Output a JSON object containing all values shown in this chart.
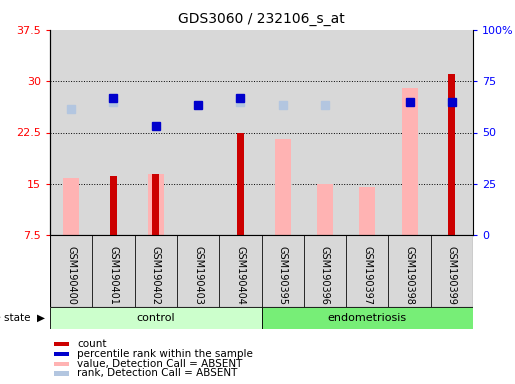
{
  "title": "GDS3060 / 232106_s_at",
  "samples": [
    "GSM190400",
    "GSM190401",
    "GSM190402",
    "GSM190403",
    "GSM190404",
    "GSM190395",
    "GSM190396",
    "GSM190397",
    "GSM190398",
    "GSM190399"
  ],
  "groups": [
    "control",
    "control",
    "control",
    "control",
    "control",
    "endometriosis",
    "endometriosis",
    "endometriosis",
    "endometriosis",
    "endometriosis"
  ],
  "value_absent": [
    15.8,
    null,
    16.5,
    null,
    null,
    21.5,
    15.0,
    14.5,
    29.0,
    null
  ],
  "rank_absent_left": [
    26.0,
    27.0,
    null,
    null,
    27.0,
    26.5,
    26.5,
    null,
    null,
    null
  ],
  "count": [
    null,
    16.2,
    16.5,
    null,
    22.5,
    null,
    null,
    null,
    null,
    31.0
  ],
  "percentile_left": [
    null,
    27.5,
    23.5,
    26.5,
    27.5,
    null,
    null,
    null,
    27.0,
    27.0
  ],
  "ylim_left": [
    7.5,
    37.5
  ],
  "ylim_right": [
    0,
    100
  ],
  "yticks_left": [
    7.5,
    15.0,
    22.5,
    30.0,
    37.5
  ],
  "yticks_right": [
    0,
    25,
    50,
    75,
    100
  ],
  "ytick_labels_left": [
    "7.5",
    "15",
    "22.5",
    "30",
    "37.5"
  ],
  "ytick_labels_right": [
    "0",
    "25",
    "50",
    "75",
    "100%"
  ],
  "color_count": "#cc0000",
  "color_percentile": "#0000cc",
  "color_value_absent": "#ffb3b3",
  "color_rank_absent": "#b3c6e0",
  "color_control_bg": "#ccffcc",
  "color_endometriosis_bg": "#77ee77",
  "color_sample_bg": "#d8d8d8",
  "bar_bottom": 7.5,
  "legend_items": [
    {
      "color": "#cc0000",
      "label": "count"
    },
    {
      "color": "#0000cc",
      "label": "percentile rank within the sample"
    },
    {
      "color": "#ffb3b3",
      "label": "value, Detection Call = ABSENT"
    },
    {
      "color": "#b3c6e0",
      "label": "rank, Detection Call = ABSENT"
    }
  ],
  "n_control": 5,
  "n_total": 10
}
